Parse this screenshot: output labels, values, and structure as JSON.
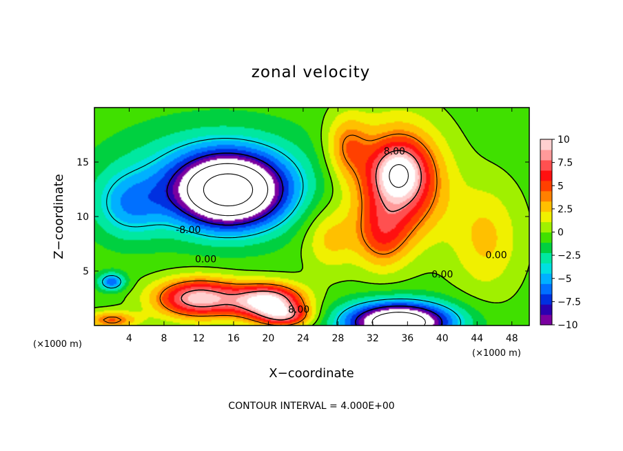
{
  "chart_data": {
    "type": "heatmap",
    "title": "zonal velocity",
    "xlabel": "X−coordinate",
    "ylabel": "Z−coordinate",
    "x_unit_left": "(×1000 m)",
    "x_unit_right": "(×1000 m)",
    "footnote": "CONTOUR INTERVAL = 4.000E+00",
    "xlim": [
      0,
      50
    ],
    "ylim": [
      0,
      20
    ],
    "xticks": [
      4,
      8,
      12,
      16,
      20,
      24,
      28,
      32,
      36,
      40,
      44,
      48
    ],
    "xtick_labels": [
      "4",
      "8",
      "12",
      "16",
      "20",
      "24",
      "28",
      "32",
      "36",
      "40",
      "44",
      "48"
    ],
    "yticks": [
      5,
      10,
      15
    ],
    "ytick_labels": [
      "5",
      "10",
      "15"
    ],
    "colorbar": {
      "min": -10,
      "max": 10,
      "ticks": [
        10,
        7.5,
        5,
        2.5,
        0,
        -2.5,
        -5,
        -7.5,
        -10
      ],
      "tick_labels": [
        "10",
        "7.5",
        "5",
        "2.5",
        "0",
        "−2.5",
        "−5",
        "−7.5",
        "−10"
      ],
      "colors": [
        "#7a00a0",
        "#2a00b0",
        "#0030e0",
        "#0070ff",
        "#00b0ff",
        "#00e0e0",
        "#00e8a0",
        "#00d040",
        "#40e000",
        "#a0f000",
        "#f0f000",
        "#ffc000",
        "#ff8000",
        "#ff4000",
        "#ff1010",
        "#ff5050",
        "#ff9a9a",
        "#ffd0d0"
      ]
    },
    "contour_interval": 4,
    "contour_labels": [
      {
        "text": "8.00",
        "x": 34.5,
        "z": 16.0
      },
      {
        "text": "-8.00",
        "x": 10.8,
        "z": 8.8
      },
      {
        "text": "0.00",
        "x": 12.8,
        "z": 6.1
      },
      {
        "text": "0.00",
        "x": 40.0,
        "z": 4.7
      },
      {
        "text": "0.00",
        "x": 46.2,
        "z": 6.5
      },
      {
        "text": "8.00",
        "x": 23.5,
        "z": 1.5
      }
    ],
    "features": [
      {
        "x": 15.5,
        "z": 12.3,
        "sx": 6.0,
        "sz": 3.2,
        "amp": -15
      },
      {
        "x": 14.0,
        "z": 13.5,
        "sx": 11.0,
        "sz": 4.5,
        "amp": -4
      },
      {
        "x": 4.0,
        "z": 11.0,
        "sx": 4.0,
        "sz": 3.0,
        "amp": -4
      },
      {
        "x": 35.0,
        "z": 13.2,
        "sx": 5.0,
        "sz": 5.0,
        "amp": 9
      },
      {
        "x": 35.0,
        "z": 14.0,
        "sx": 2.5,
        "sz": 2.2,
        "amp": 5
      },
      {
        "x": 29.0,
        "z": 16.5,
        "sx": 2.5,
        "sz": 3.0,
        "amp": 4
      },
      {
        "x": 12.0,
        "z": 2.5,
        "sx": 5.0,
        "sz": 1.8,
        "amp": 10
      },
      {
        "x": 20.0,
        "z": 2.2,
        "sx": 4.0,
        "sz": 1.6,
        "amp": 11
      },
      {
        "x": 22.0,
        "z": 0.8,
        "sx": 3.0,
        "sz": 1.0,
        "amp": 6
      },
      {
        "x": 35.0,
        "z": 0.3,
        "sx": 6.0,
        "sz": 1.8,
        "amp": -15
      },
      {
        "x": 2.0,
        "z": 4.0,
        "sx": 1.5,
        "sz": 0.8,
        "amp": -6
      },
      {
        "x": 45.0,
        "z": 8.0,
        "sx": 4.0,
        "sz": 5.0,
        "amp": 3
      },
      {
        "x": 27.0,
        "z": 8.0,
        "sx": 3.0,
        "sz": 3.0,
        "amp": 3
      },
      {
        "x": 2.0,
        "z": 0.5,
        "sx": 3.0,
        "sz": 0.8,
        "amp": 5
      },
      {
        "x": 33.0,
        "z": 8.0,
        "sx": 3.0,
        "sz": 3.0,
        "amp": 4
      }
    ]
  }
}
